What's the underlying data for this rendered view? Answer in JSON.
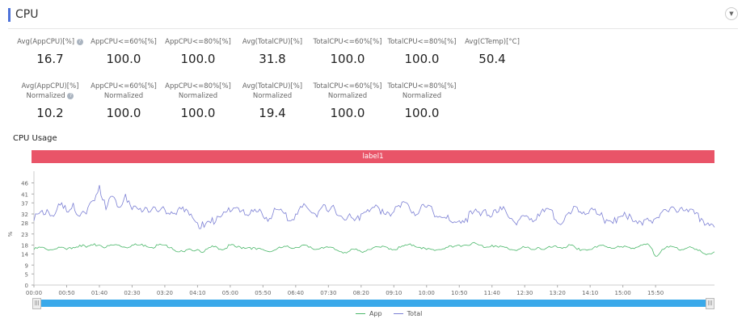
{
  "header": {
    "title": "CPU",
    "collapse_icon": "chevron-down-circle-icon"
  },
  "metrics_row1": [
    {
      "label": "Avg(AppCPU)[%]",
      "value": "16.7",
      "help": true
    },
    {
      "label": "AppCPU<=60%[%]",
      "value": "100.0"
    },
    {
      "label": "AppCPU<=80%[%]",
      "value": "100.0"
    },
    {
      "label": "Avg(TotalCPU)[%]",
      "value": "31.8"
    },
    {
      "label": "TotalCPU<=60%[%]",
      "value": "100.0"
    },
    {
      "label": "TotalCPU<=80%[%]",
      "value": "100.0"
    },
    {
      "label": "Avg(CTemp)[°C]",
      "value": "50.4"
    }
  ],
  "metrics_row2": [
    {
      "label": "Avg(AppCPU)[%]",
      "sub": "Normalized",
      "value": "10.2",
      "help": true
    },
    {
      "label": "AppCPU<=60%[%]",
      "sub": "Normalized",
      "value": "100.0"
    },
    {
      "label": "AppCPU<=80%[%]",
      "sub": "Normalized",
      "value": "100.0"
    },
    {
      "label": "Avg(TotalCPU)[%]",
      "sub": "Normalized",
      "value": "19.4"
    },
    {
      "label": "TotalCPU<=60%[%]",
      "sub": "Normalized",
      "value": "100.0"
    },
    {
      "label": "TotalCPU<=80%[%]",
      "sub": "Normalized",
      "value": "100.0"
    }
  ],
  "chart_data": {
    "type": "line",
    "title": "CPU Usage",
    "band_label": "label1",
    "xlabel": "",
    "ylabel": "%",
    "ylim": [
      0,
      48
    ],
    "yticks": [
      0,
      5,
      9,
      14,
      18,
      23,
      28,
      32,
      37,
      41,
      46
    ],
    "xticks": [
      "00:00",
      "00:50",
      "01:40",
      "02:30",
      "03:20",
      "04:10",
      "05:00",
      "05:50",
      "06:40",
      "07:30",
      "08:20",
      "09:10",
      "10:00",
      "10:50",
      "11:40",
      "12:30",
      "13:20",
      "14:10",
      "15:00",
      "15:50"
    ],
    "x_interval_seconds": 10,
    "x_range_seconds": [
      0,
      1040
    ],
    "grid": false,
    "legend_position": "bottom-center",
    "series": [
      {
        "name": "App",
        "color": "#4cb86b",
        "values": [
          16,
          17,
          16,
          16,
          17,
          16,
          17,
          18,
          17,
          18,
          18,
          17,
          18,
          18,
          17,
          18,
          18,
          18,
          17,
          18,
          18,
          17,
          15,
          15,
          16,
          16,
          15,
          17,
          17,
          16,
          18,
          17,
          17,
          17,
          16,
          16,
          15,
          16,
          17,
          17,
          17,
          18,
          17,
          16,
          17,
          17,
          16,
          15,
          15,
          16,
          15,
          16,
          17,
          17,
          17,
          16,
          17,
          18,
          18,
          17,
          16,
          16,
          16,
          17,
          17,
          18,
          18,
          19,
          18,
          17,
          18,
          17,
          17,
          16,
          16,
          17,
          16,
          17,
          16,
          17,
          17,
          17,
          18,
          16,
          16,
          16,
          17,
          18,
          17,
          17,
          17,
          17,
          17,
          18,
          18,
          13,
          16,
          17,
          17,
          16,
          17,
          16,
          15,
          14,
          15
        ]
      },
      {
        "name": "Total",
        "color": "#7b7fd4",
        "values": [
          29,
          33,
          34,
          31,
          36,
          33,
          37,
          31,
          32,
          38,
          45,
          34,
          40,
          35,
          41,
          34,
          34,
          35,
          34,
          33,
          34,
          33,
          34,
          33,
          32,
          28,
          26,
          28,
          31,
          33,
          33,
          35,
          34,
          32,
          33,
          31,
          30,
          34,
          33,
          29,
          32,
          35,
          34,
          32,
          35,
          33,
          34,
          31,
          31,
          29,
          32,
          34,
          35,
          32,
          33,
          33,
          35,
          37,
          33,
          34,
          35,
          33,
          31,
          30,
          28,
          29,
          30,
          32,
          33,
          34,
          31,
          33,
          34,
          30,
          29,
          31,
          30,
          32,
          33,
          34,
          28,
          29,
          32,
          35,
          33,
          34,
          32,
          30,
          29,
          28,
          31,
          32,
          29,
          27,
          29,
          30,
          33,
          33,
          34,
          35,
          33,
          32,
          30,
          28,
          26
        ]
      }
    ]
  },
  "legend": [
    {
      "label": "App",
      "color": "#4cb86b"
    },
    {
      "label": "Total",
      "color": "#7b7fd4"
    }
  ],
  "slider": {
    "start_handle": "drag-handle-icon",
    "end_handle": "drag-handle-icon"
  }
}
